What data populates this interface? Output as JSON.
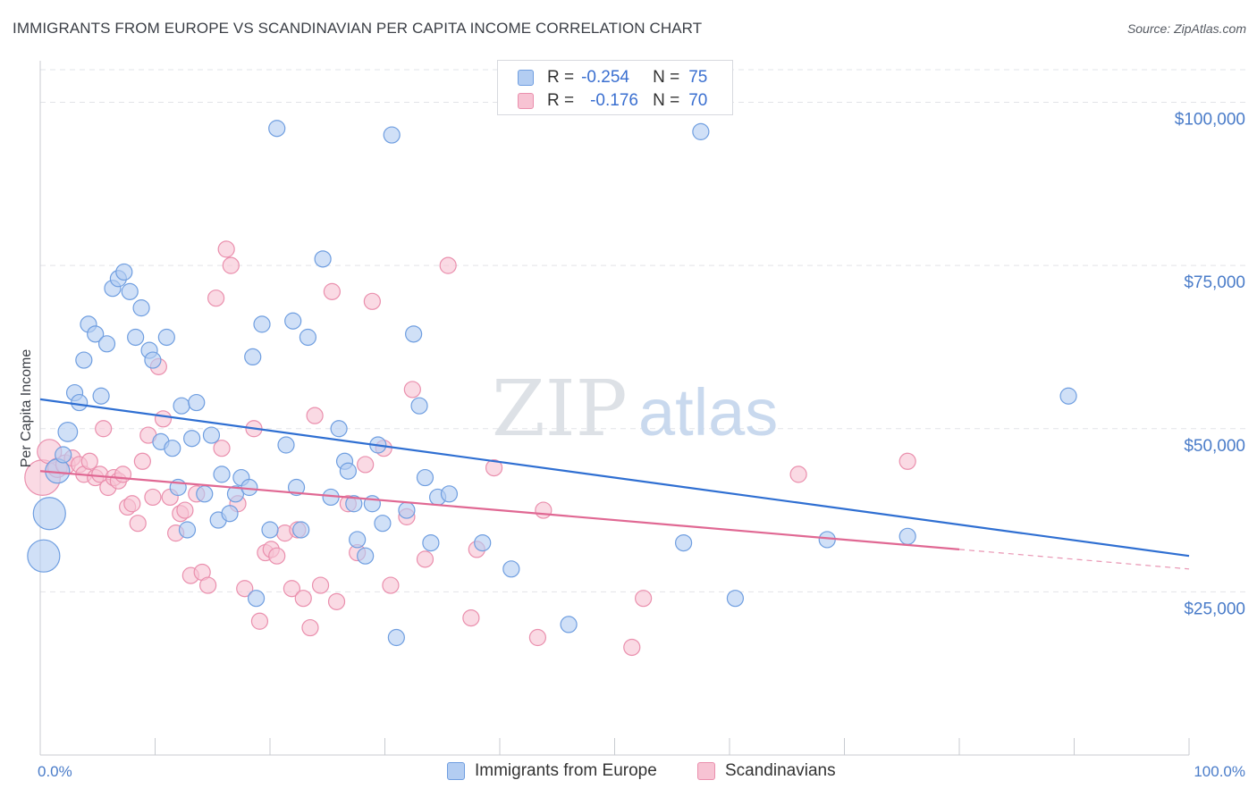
{
  "title": "IMMIGRANTS FROM EUROPE VS SCANDINAVIAN PER CAPITA INCOME CORRELATION CHART",
  "source": "Source: ZipAtlas.com",
  "watermark": {
    "zip": "ZIP",
    "atlas": "atlas"
  },
  "legend": {
    "r_label": "R =",
    "n_label": "N =",
    "series1": {
      "r": "-0.254",
      "n": "75"
    },
    "series2": {
      "r": "-0.176",
      "n": "70"
    }
  },
  "colors": {
    "series1_fill": "#b3cdf2",
    "series1_stroke": "#6f9ee0",
    "series1_line": "#2f6fd2",
    "series2_fill": "#f7c3d3",
    "series2_stroke": "#ea8fad",
    "series2_line": "#e06893",
    "axis_text": "#4a7cc9",
    "grid": "#e2e4e8"
  },
  "chart_data": {
    "type": "scatter",
    "title": "IMMIGRANTS FROM EUROPE VS SCANDINAVIAN PER CAPITA INCOME CORRELATION CHART",
    "xlabel": "",
    "ylabel": "Per Capita Income",
    "xlim": [
      0,
      100
    ],
    "ylim": [
      0,
      105000
    ],
    "x_tick_labels": [
      "0.0%",
      "100.0%"
    ],
    "y_ticks": [
      25000,
      50000,
      75000,
      100000
    ],
    "y_tick_labels": [
      "$25,000",
      "$50,000",
      "$75,000",
      "$100,000"
    ],
    "grid": "horizontal dashed",
    "legend_position": "top-center and bottom",
    "series": [
      {
        "name": "Immigrants from Europe",
        "r": -0.254,
        "n": 75,
        "trend": {
          "x": [
            0,
            100
          ],
          "y": [
            54500,
            30500
          ]
        },
        "points": [
          [
            0.3,
            30500,
            2
          ],
          [
            0.8,
            37000,
            2
          ],
          [
            1.5,
            43500,
            1.5
          ],
          [
            2,
            46000,
            1
          ],
          [
            2.4,
            49500,
            1.2
          ],
          [
            3.0,
            55500,
            1
          ],
          [
            3.4,
            54000,
            1
          ],
          [
            3.8,
            60500,
            1
          ],
          [
            4.2,
            66000,
            1
          ],
          [
            4.8,
            64500,
            1
          ],
          [
            5.3,
            55000,
            1
          ],
          [
            5.8,
            63000,
            1
          ],
          [
            6.3,
            71500,
            1
          ],
          [
            6.8,
            73000,
            1
          ],
          [
            7.3,
            74000,
            1
          ],
          [
            7.8,
            71000,
            1
          ],
          [
            8.3,
            64000,
            1
          ],
          [
            8.8,
            68500,
            1
          ],
          [
            9.5,
            62000,
            1
          ],
          [
            9.8,
            60500,
            1
          ],
          [
            10.5,
            48000,
            1
          ],
          [
            11,
            64000,
            1
          ],
          [
            11.5,
            47000,
            1
          ],
          [
            12,
            41000,
            1
          ],
          [
            12.3,
            53500,
            1
          ],
          [
            12.8,
            34500,
            1
          ],
          [
            13.2,
            48500,
            1
          ],
          [
            13.6,
            54000,
            1
          ],
          [
            14.3,
            40000,
            1
          ],
          [
            14.9,
            49000,
            1
          ],
          [
            15.5,
            36000,
            1
          ],
          [
            15.8,
            43000,
            1
          ],
          [
            16.5,
            37000,
            1
          ],
          [
            17.0,
            40000,
            1
          ],
          [
            17.5,
            42500,
            1
          ],
          [
            18.2,
            41000,
            1
          ],
          [
            18.8,
            24000,
            1
          ],
          [
            18.5,
            61000,
            1
          ],
          [
            19.3,
            66000,
            1
          ],
          [
            20,
            34500,
            1
          ],
          [
            20.6,
            96000,
            1
          ],
          [
            21.4,
            47500,
            1
          ],
          [
            22,
            66500,
            1
          ],
          [
            22.3,
            41000,
            1
          ],
          [
            22.7,
            34500,
            1
          ],
          [
            23.3,
            64000,
            1
          ],
          [
            24.6,
            76000,
            1
          ],
          [
            25.3,
            39500,
            1
          ],
          [
            26.0,
            50000,
            1
          ],
          [
            26.5,
            45000,
            1
          ],
          [
            26.8,
            43500,
            1
          ],
          [
            27.3,
            38500,
            1
          ],
          [
            27.6,
            33000,
            1
          ],
          [
            28.3,
            30500,
            1
          ],
          [
            28.9,
            38500,
            1
          ],
          [
            29.4,
            47500,
            1
          ],
          [
            29.8,
            35500,
            1
          ],
          [
            30.6,
            95000,
            1
          ],
          [
            31.0,
            18000,
            1
          ],
          [
            31.9,
            37500,
            1
          ],
          [
            32.5,
            64500,
            1
          ],
          [
            33.0,
            53500,
            1
          ],
          [
            33.5,
            42500,
            1
          ],
          [
            34.0,
            32500,
            1
          ],
          [
            34.6,
            39500,
            1
          ],
          [
            35.6,
            40000,
            1
          ],
          [
            38.5,
            32500,
            1
          ],
          [
            41.0,
            28500,
            1
          ],
          [
            46.0,
            20000,
            1
          ],
          [
            56.0,
            32500,
            1
          ],
          [
            60.5,
            24000,
            1
          ],
          [
            68.5,
            33000,
            1
          ],
          [
            75.5,
            33500,
            1
          ],
          [
            89.5,
            55000,
            1
          ],
          [
            57.5,
            95500,
            1
          ]
        ]
      },
      {
        "name": "Scandinavians",
        "r": -0.176,
        "n": 70,
        "trend": {
          "x": [
            0,
            80
          ],
          "y": [
            43500,
            31500
          ]
        },
        "points": [
          [
            0.2,
            42500,
            2.2
          ],
          [
            0.8,
            46500,
            1.5
          ],
          [
            1.5,
            44000,
            1.2
          ],
          [
            2.2,
            44500,
            1.2
          ],
          [
            2.8,
            45500,
            1
          ],
          [
            3.4,
            44500,
            1
          ],
          [
            3.8,
            43000,
            1
          ],
          [
            4.3,
            45000,
            1
          ],
          [
            4.8,
            42500,
            1
          ],
          [
            5.2,
            43000,
            1
          ],
          [
            5.5,
            50000,
            1
          ],
          [
            5.9,
            41000,
            1
          ],
          [
            6.4,
            42500,
            1
          ],
          [
            6.8,
            42000,
            1
          ],
          [
            7.2,
            43000,
            1
          ],
          [
            7.6,
            38000,
            1
          ],
          [
            8.0,
            38500,
            1
          ],
          [
            8.5,
            35500,
            1
          ],
          [
            8.9,
            45000,
            1
          ],
          [
            9.4,
            49000,
            1
          ],
          [
            9.8,
            39500,
            1
          ],
          [
            10.3,
            59500,
            1
          ],
          [
            10.7,
            51500,
            1
          ],
          [
            11.3,
            39500,
            1
          ],
          [
            11.8,
            34000,
            1
          ],
          [
            12.2,
            37000,
            1
          ],
          [
            12.6,
            37500,
            1
          ],
          [
            13.1,
            27500,
            1
          ],
          [
            13.6,
            40000,
            1
          ],
          [
            14.1,
            28000,
            1
          ],
          [
            14.6,
            26000,
            1
          ],
          [
            15.3,
            70000,
            1
          ],
          [
            15.8,
            47000,
            1
          ],
          [
            16.2,
            77500,
            1
          ],
          [
            16.6,
            75000,
            1
          ],
          [
            17.2,
            38500,
            1
          ],
          [
            17.8,
            25500,
            1
          ],
          [
            18.6,
            50000,
            1
          ],
          [
            19.1,
            20500,
            1
          ],
          [
            19.6,
            31000,
            1
          ],
          [
            20.1,
            31500,
            1
          ],
          [
            20.6,
            30500,
            1
          ],
          [
            21.3,
            34000,
            1
          ],
          [
            21.9,
            25500,
            1
          ],
          [
            22.4,
            34500,
            1
          ],
          [
            22.9,
            24000,
            1
          ],
          [
            23.5,
            19500,
            1
          ],
          [
            23.9,
            52000,
            1
          ],
          [
            24.4,
            26000,
            1
          ],
          [
            25.4,
            71000,
            1
          ],
          [
            25.8,
            23500,
            1
          ],
          [
            26.8,
            38500,
            1
          ],
          [
            27.6,
            31000,
            1
          ],
          [
            28.3,
            44500,
            1
          ],
          [
            28.9,
            69500,
            1
          ],
          [
            29.9,
            47000,
            1
          ],
          [
            30.5,
            26000,
            1
          ],
          [
            31.9,
            36500,
            1
          ],
          [
            32.4,
            56000,
            1
          ],
          [
            33.5,
            30000,
            1
          ],
          [
            35.5,
            75000,
            1
          ],
          [
            37.5,
            21000,
            1
          ],
          [
            38.0,
            31500,
            1
          ],
          [
            39.5,
            44000,
            1
          ],
          [
            43.3,
            18000,
            1
          ],
          [
            43.8,
            37500,
            1
          ],
          [
            51.5,
            16500,
            1
          ],
          [
            52.5,
            24000,
            1
          ],
          [
            66.0,
            43000,
            1
          ],
          [
            75.5,
            45000,
            1
          ]
        ]
      }
    ]
  },
  "bottom_legend": {
    "series1": "Immigrants from Europe",
    "series2": "Scandinavians"
  }
}
